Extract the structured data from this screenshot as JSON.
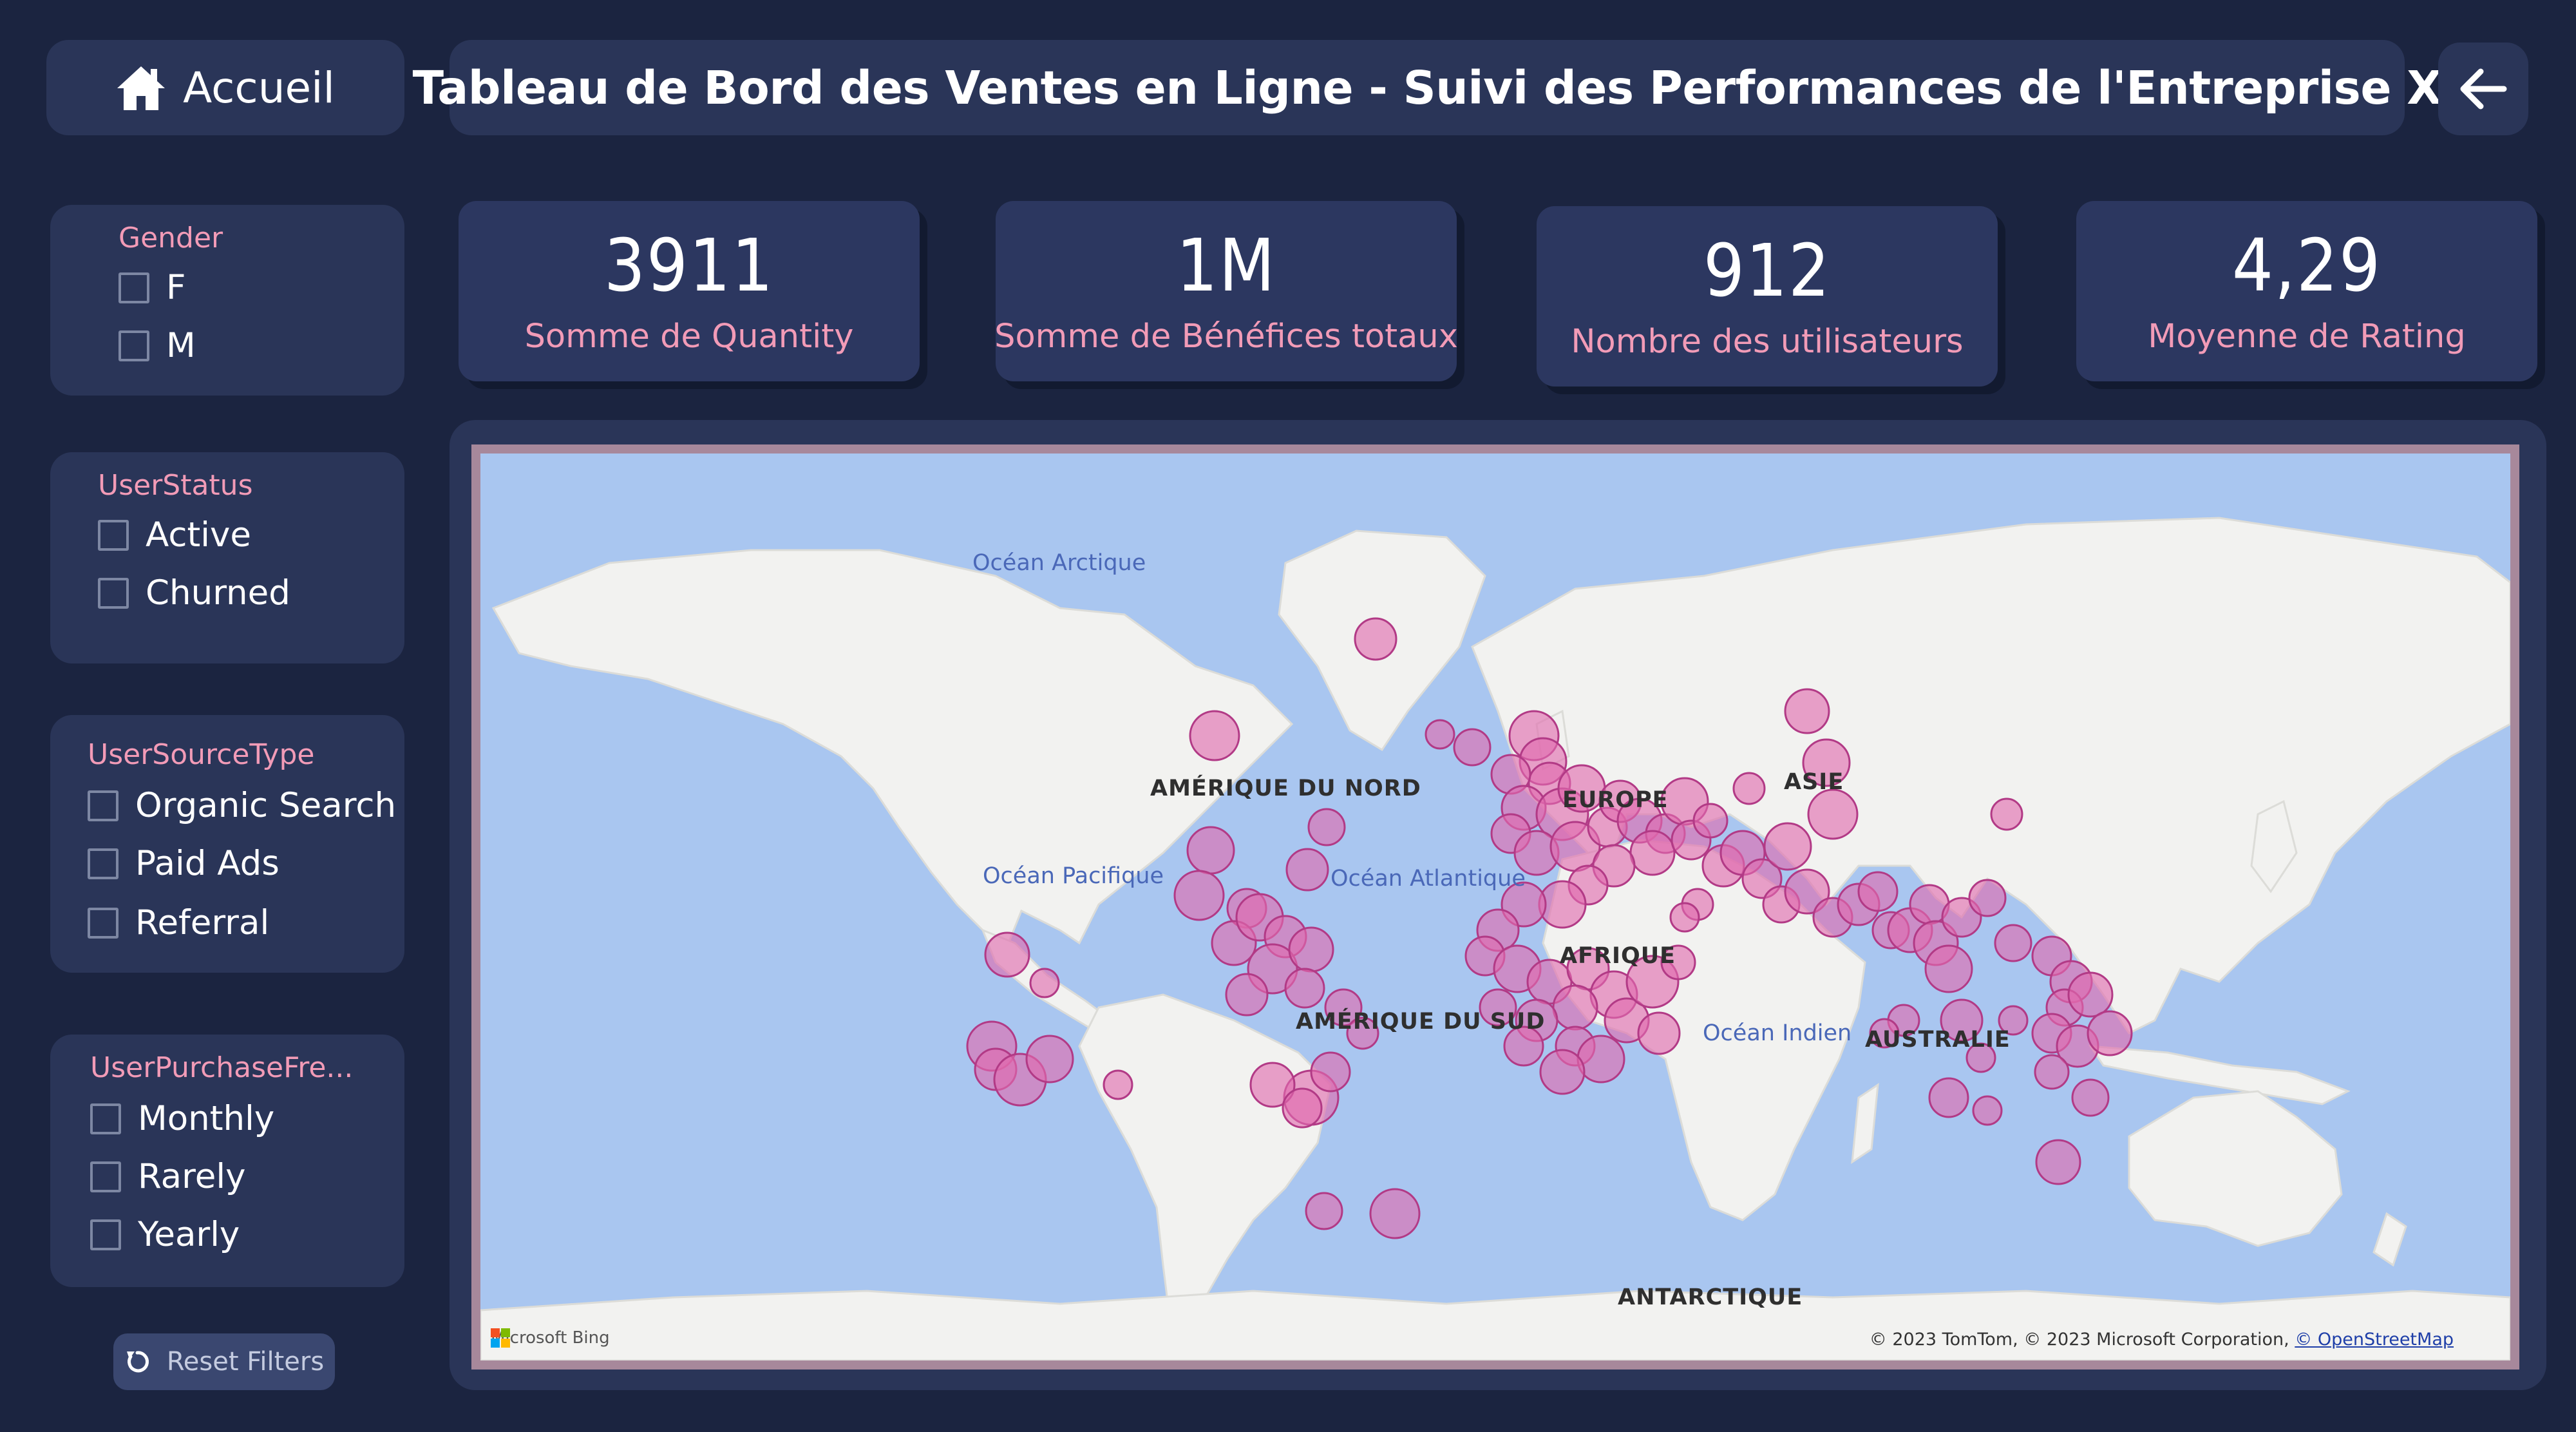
{
  "header": {
    "home_label": "Accueil",
    "title": "Tableau de Bord des Ventes en Ligne - Suivi des Performances de l'Entreprise X",
    "home_icon": "home-icon",
    "back_icon": "arrow-left-icon"
  },
  "filters": {
    "gender": {
      "title": "Gender",
      "options": [
        "F",
        "M"
      ]
    },
    "user_status": {
      "title": "UserStatus",
      "options": [
        "Active",
        "Churned"
      ]
    },
    "user_source_type": {
      "title": "UserSourceType",
      "options": [
        "Organic Search",
        "Paid Ads",
        "Referral"
      ]
    },
    "user_purchase_frequency": {
      "title": "UserPurchaseFre...",
      "options": [
        "Monthly",
        "Rarely",
        "Yearly"
      ]
    },
    "reset_label": "Reset Filters"
  },
  "kpis": [
    {
      "value": "3911",
      "label": "Somme de Quantity"
    },
    {
      "value": "1M",
      "label": "Somme de Bénéfices totaux"
    },
    {
      "value": "912",
      "label": "Nombre des utilisateurs"
    },
    {
      "value": "4,29",
      "label": "Moyenne de Rating"
    }
  ],
  "map": {
    "ocean_labels": [
      "Océan Arctique",
      "Océan Pacifique",
      "Océan Atlantique",
      "Océan Indien"
    ],
    "continent_labels": [
      "AMÉRIQUE DU NORD",
      "EUROPE",
      "ASIE",
      "AFRIQUE",
      "AMÉRIQUE DU SUD",
      "AUSTRALIE",
      "ANTARCTIQUE"
    ],
    "brand": "Microsoft Bing",
    "copyright": "© 2023 TomTom, © 2023 Microsoft Corporation,",
    "copyright_link": "© OpenStreetMap"
  },
  "colors": {
    "background": "#1b2440",
    "panel": "#2a3558",
    "accent_pink": "#f29bb7",
    "bubble_fill": "#e06aae",
    "bubble_stroke": "#b23a86",
    "ocean": "#a9c6f0",
    "land": "#f2f2f0"
  }
}
